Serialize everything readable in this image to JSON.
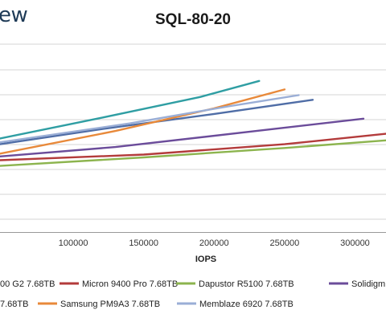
{
  "brand": {
    "text": "ew"
  },
  "chart_data": {
    "type": "line",
    "title": "SQL-80-20",
    "xlabel": "IOPS",
    "ylabel": "",
    "xlim": [
      48000,
      322000
    ],
    "ylim": [
      0,
      10
    ],
    "x_ticks": [
      "100000",
      "150000",
      "200000",
      "250000",
      "300000"
    ],
    "grid": true,
    "legend": "bottom",
    "legend_rows": [
      [
        "00 G2 7.68TB",
        "Micron 9400 Pro 7.68TB",
        "Dapustor R5100 7.68TB",
        "Solidigm"
      ],
      [
        "7.68TB",
        "Samsung PM9A3 7.68TB",
        "Memblaze 6920 7.68TB"
      ]
    ],
    "series": [
      {
        "name": "00 G2 7.68TB",
        "color": "#4f6da6",
        "points": [
          [
            48000,
            4.7
          ],
          [
            120000,
            5.5
          ],
          [
            200000,
            6.3
          ],
          [
            270000,
            7.05
          ]
        ]
      },
      {
        "name": "Micron 9400 Pro 7.68TB",
        "color": "#b33b3b",
        "points": [
          [
            48000,
            3.85
          ],
          [
            150000,
            4.15
          ],
          [
            250000,
            4.7
          ],
          [
            322000,
            5.25
          ]
        ]
      },
      {
        "name": "Dapustor R5100 7.68TB",
        "color": "#8cb44e",
        "points": [
          [
            48000,
            3.55
          ],
          [
            150000,
            4.0
          ],
          [
            250000,
            4.5
          ],
          [
            322000,
            4.9
          ]
        ]
      },
      {
        "name": "Solidigm",
        "color": "#6b4c9a",
        "points": [
          [
            48000,
            4.05
          ],
          [
            130000,
            4.55
          ],
          [
            230000,
            5.4
          ],
          [
            306000,
            6.05
          ]
        ]
      },
      {
        "name": "7.68TB",
        "color": "#2f9ea3",
        "points": [
          [
            48000,
            5.0
          ],
          [
            120000,
            6.1
          ],
          [
            190000,
            7.2
          ],
          [
            232000,
            8.05
          ]
        ]
      },
      {
        "name": "Samsung PM9A3 7.68TB",
        "color": "#e8893a",
        "points": [
          [
            48000,
            4.2
          ],
          [
            130000,
            5.4
          ],
          [
            200000,
            6.6
          ],
          [
            250000,
            7.6
          ]
        ]
      },
      {
        "name": "Memblaze 6920 7.68TB",
        "color": "#9aaed6",
        "points": [
          [
            48000,
            4.8
          ],
          [
            140000,
            5.8
          ],
          [
            210000,
            6.7
          ],
          [
            260000,
            7.3
          ]
        ]
      }
    ]
  }
}
